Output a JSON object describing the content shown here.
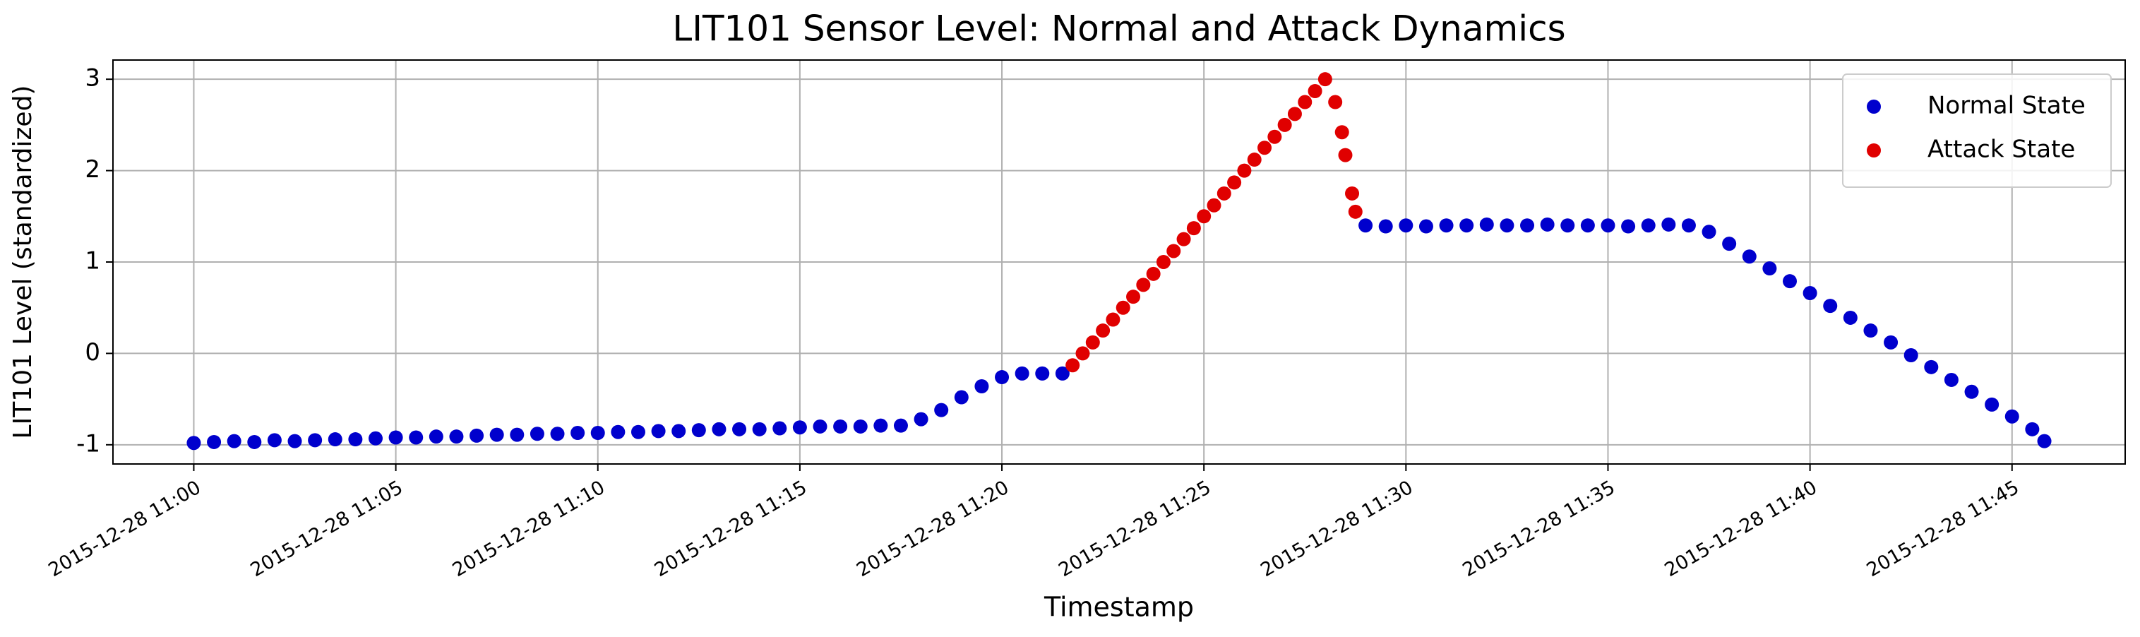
{
  "chart_data": {
    "type": "scatter",
    "title": "LIT101 Sensor Level: Normal and Attack Dynamics",
    "x_label": "Timestamp",
    "y_label": "LIT101 Level (standardized)",
    "xlim": [
      "2015-12-28 10:58:00",
      "2015-12-28 11:47:48"
    ],
    "ylim": [
      -1.21,
      3.21
    ],
    "yticks": [
      -1,
      0,
      1,
      2,
      3
    ],
    "xticks": [
      {
        "value": "2015-12-28 11:00:00",
        "label": "2015-12-28 11:00"
      },
      {
        "value": "2015-12-28 11:05:00",
        "label": "2015-12-28 11:05"
      },
      {
        "value": "2015-12-28 11:10:00",
        "label": "2015-12-28 11:10"
      },
      {
        "value": "2015-12-28 11:15:00",
        "label": "2015-12-28 11:15"
      },
      {
        "value": "2015-12-28 11:20:00",
        "label": "2015-12-28 11:20"
      },
      {
        "value": "2015-12-28 11:25:00",
        "label": "2015-12-28 11:25"
      },
      {
        "value": "2015-12-28 11:30:00",
        "label": "2015-12-28 11:30"
      },
      {
        "value": "2015-12-28 11:35:00",
        "label": "2015-12-28 11:35"
      },
      {
        "value": "2015-12-28 11:40:00",
        "label": "2015-12-28 11:40"
      },
      {
        "value": "2015-12-28 11:45:00",
        "label": "2015-12-28 11:45"
      }
    ],
    "grid": true,
    "legend": "upper right",
    "series": [
      {
        "name": "Normal State",
        "color": "#0000cd",
        "x": [
          "2015-12-28 11:00:00",
          "2015-12-28 11:00:30",
          "2015-12-28 11:01:00",
          "2015-12-28 11:01:30",
          "2015-12-28 11:02:00",
          "2015-12-28 11:02:30",
          "2015-12-28 11:03:00",
          "2015-12-28 11:03:30",
          "2015-12-28 11:04:00",
          "2015-12-28 11:04:30",
          "2015-12-28 11:05:00",
          "2015-12-28 11:05:30",
          "2015-12-28 11:06:00",
          "2015-12-28 11:06:30",
          "2015-12-28 11:07:00",
          "2015-12-28 11:07:30",
          "2015-12-28 11:08:00",
          "2015-12-28 11:08:30",
          "2015-12-28 11:09:00",
          "2015-12-28 11:09:30",
          "2015-12-28 11:10:00",
          "2015-12-28 11:10:30",
          "2015-12-28 11:11:00",
          "2015-12-28 11:11:30",
          "2015-12-28 11:12:00",
          "2015-12-28 11:12:30",
          "2015-12-28 11:13:00",
          "2015-12-28 11:13:30",
          "2015-12-28 11:14:00",
          "2015-12-28 11:14:30",
          "2015-12-28 11:15:00",
          "2015-12-28 11:15:30",
          "2015-12-28 11:16:00",
          "2015-12-28 11:16:30",
          "2015-12-28 11:17:00",
          "2015-12-28 11:17:30",
          "2015-12-28 11:18:00",
          "2015-12-28 11:18:30",
          "2015-12-28 11:19:00",
          "2015-12-28 11:19:30",
          "2015-12-28 11:20:00",
          "2015-12-28 11:20:30",
          "2015-12-28 11:21:00",
          "2015-12-28 11:21:30",
          "2015-12-28 11:29:00",
          "2015-12-28 11:29:30",
          "2015-12-28 11:30:00",
          "2015-12-28 11:30:30",
          "2015-12-28 11:31:00",
          "2015-12-28 11:31:30",
          "2015-12-28 11:32:00",
          "2015-12-28 11:32:30",
          "2015-12-28 11:33:00",
          "2015-12-28 11:33:30",
          "2015-12-28 11:34:00",
          "2015-12-28 11:34:30",
          "2015-12-28 11:35:00",
          "2015-12-28 11:35:30",
          "2015-12-28 11:36:00",
          "2015-12-28 11:36:30",
          "2015-12-28 11:37:00",
          "2015-12-28 11:37:30",
          "2015-12-28 11:38:00",
          "2015-12-28 11:38:30",
          "2015-12-28 11:39:00",
          "2015-12-28 11:39:30",
          "2015-12-28 11:40:00",
          "2015-12-28 11:40:30",
          "2015-12-28 11:41:00",
          "2015-12-28 11:41:30",
          "2015-12-28 11:42:00",
          "2015-12-28 11:42:30",
          "2015-12-28 11:43:00",
          "2015-12-28 11:43:30",
          "2015-12-28 11:44:00",
          "2015-12-28 11:44:30",
          "2015-12-28 11:45:00",
          "2015-12-28 11:45:30",
          "2015-12-28 11:45:48"
        ],
        "values": [
          -0.98,
          -0.97,
          -0.96,
          -0.97,
          -0.95,
          -0.96,
          -0.95,
          -0.94,
          -0.94,
          -0.93,
          -0.92,
          -0.92,
          -0.91,
          -0.91,
          -0.9,
          -0.89,
          -0.89,
          -0.88,
          -0.88,
          -0.87,
          -0.87,
          -0.86,
          -0.86,
          -0.85,
          -0.85,
          -0.84,
          -0.83,
          -0.83,
          -0.83,
          -0.82,
          -0.81,
          -0.8,
          -0.8,
          -0.8,
          -0.79,
          -0.79,
          -0.72,
          -0.62,
          -0.48,
          -0.36,
          -0.26,
          -0.22,
          -0.22,
          -0.22,
          1.4,
          1.39,
          1.4,
          1.39,
          1.4,
          1.4,
          1.41,
          1.4,
          1.4,
          1.41,
          1.4,
          1.4,
          1.4,
          1.39,
          1.4,
          1.41,
          1.4,
          1.33,
          1.2,
          1.06,
          0.93,
          0.79,
          0.66,
          0.52,
          0.39,
          0.25,
          0.12,
          -0.02,
          -0.15,
          -0.29,
          -0.42,
          -0.56,
          -0.69,
          -0.83,
          -0.96
        ]
      },
      {
        "name": "Attack State",
        "color": "#e00000",
        "x": [
          "2015-12-28 11:21:45",
          "2015-12-28 11:22:00",
          "2015-12-28 11:22:15",
          "2015-12-28 11:22:30",
          "2015-12-28 11:22:45",
          "2015-12-28 11:23:00",
          "2015-12-28 11:23:15",
          "2015-12-28 11:23:30",
          "2015-12-28 11:23:45",
          "2015-12-28 11:24:00",
          "2015-12-28 11:24:15",
          "2015-12-28 11:24:30",
          "2015-12-28 11:24:45",
          "2015-12-28 11:25:00",
          "2015-12-28 11:25:15",
          "2015-12-28 11:25:30",
          "2015-12-28 11:25:45",
          "2015-12-28 11:26:00",
          "2015-12-28 11:26:15",
          "2015-12-28 11:26:30",
          "2015-12-28 11:26:45",
          "2015-12-28 11:27:00",
          "2015-12-28 11:27:15",
          "2015-12-28 11:27:30",
          "2015-12-28 11:27:45",
          "2015-12-28 11:28:00",
          "2015-12-28 11:28:15",
          "2015-12-28 11:28:25",
          "2015-12-28 11:28:30",
          "2015-12-28 11:28:40",
          "2015-12-28 11:28:45"
        ],
        "values": [
          -0.13,
          0.0,
          0.12,
          0.25,
          0.37,
          0.5,
          0.62,
          0.75,
          0.87,
          1.0,
          1.12,
          1.25,
          1.37,
          1.5,
          1.62,
          1.75,
          1.87,
          2.0,
          2.12,
          2.25,
          2.37,
          2.5,
          2.62,
          2.75,
          2.87,
          3.0,
          2.75,
          2.42,
          2.17,
          1.75,
          1.55
        ]
      }
    ]
  }
}
